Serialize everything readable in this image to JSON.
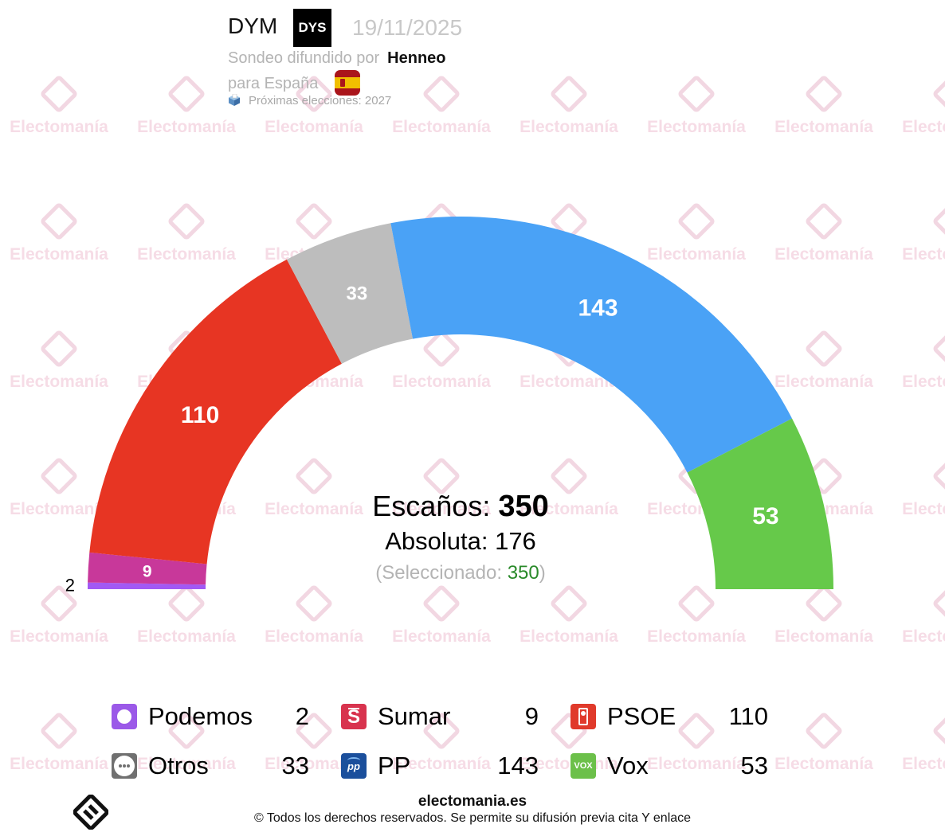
{
  "header": {
    "pollster": "DYM",
    "pollster_logo_text": "DYS",
    "date": "19/11/2025",
    "disseminated_by_label": "Sondeo difundido por",
    "media": "Henneo",
    "for_label": "para España",
    "next_elections": "Próximas elecciones: 2027",
    "flag_icon": "spain-flag-icon",
    "ballot_icon": "ballot-box-icon"
  },
  "watermark_text": "Electomanía",
  "center": {
    "seats_label": "Escaños:",
    "seats_total": "350",
    "majority_label": "Absoluta:",
    "majority_value": "176",
    "selected_open": "(Seleccionado:",
    "selected_value": "350",
    "selected_close": ")"
  },
  "chart_data": {
    "type": "pie",
    "subtype": "hemicycle",
    "total": 350,
    "majority": 176,
    "slices": [
      {
        "name": "Podemos",
        "value": 2,
        "color": "#a259f4",
        "icon": "podemos-circle-icon"
      },
      {
        "name": "Sumar",
        "value": 9,
        "color": "#c8389a",
        "icon": "sumar-s-icon"
      },
      {
        "name": "PSOE",
        "value": 110,
        "color": "#e73523",
        "icon": "psoe-fist-rose-icon"
      },
      {
        "name": "Otros",
        "value": 33,
        "color": "#bdbdbd",
        "icon": "otros-dots-icon"
      },
      {
        "name": "PP",
        "value": 143,
        "color": "#4aa2f6",
        "icon": "pp-logo-icon"
      },
      {
        "name": "Vox",
        "value": 53,
        "color": "#66c94a",
        "icon": "vox-logo-icon"
      }
    ]
  },
  "legend": [
    {
      "name": "Podemos",
      "value": "2",
      "color": "#a259f4",
      "icon_bg": "#9b59e8",
      "icon": "podemos-circle-icon"
    },
    {
      "name": "Sumar",
      "value": "9",
      "color": "#c8389a",
      "icon_bg": "#d8334e",
      "icon": "sumar-s-icon"
    },
    {
      "name": "PSOE",
      "value": "110",
      "color": "#e73523",
      "icon_bg": "#e03a2b",
      "icon": "psoe-fist-rose-icon"
    },
    {
      "name": "Otros",
      "value": "33",
      "color": "#bdbdbd",
      "icon_bg": "#707070",
      "icon": "otros-dots-icon"
    },
    {
      "name": "PP",
      "value": "143",
      "color": "#4aa2f6",
      "icon_bg": "#1b4f9c",
      "icon": "pp-logo-icon"
    },
    {
      "name": "Vox",
      "value": "53",
      "color": "#66c94a",
      "icon_bg": "#6cc04a",
      "icon": "vox-logo-icon"
    }
  ],
  "footer": {
    "site": "electomania.es",
    "copyright": "© Todos los derechos reservados. Se permite su difusión previa cita Y enlace",
    "logo_icon": "electomania-logo-icon"
  }
}
